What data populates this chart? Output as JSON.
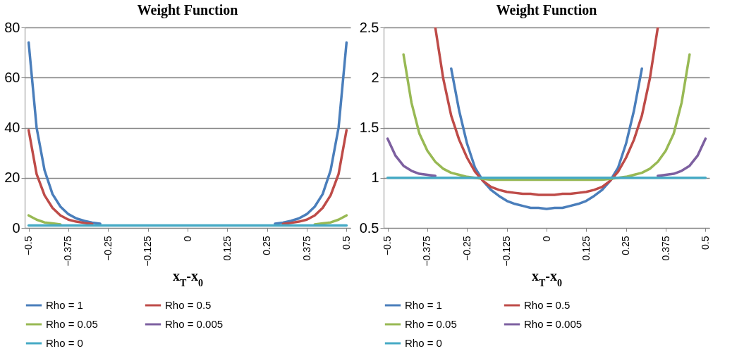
{
  "chart_data": [
    {
      "type": "line",
      "title": "Weight Function",
      "xlabel": "x$_{T}$-x$_{0}$",
      "x": [
        -0.5,
        -0.475,
        -0.45,
        -0.425,
        -0.4,
        -0.375,
        -0.35,
        -0.325,
        -0.3,
        -0.275,
        -0.25,
        -0.225,
        -0.2,
        -0.175,
        -0.15,
        -0.125,
        -0.1,
        -0.075,
        -0.05,
        -0.025,
        0,
        0.025,
        0.05,
        0.075,
        0.1,
        0.125,
        0.15,
        0.175,
        0.2,
        0.225,
        0.25,
        0.275,
        0.3,
        0.325,
        0.35,
        0.375,
        0.4,
        0.425,
        0.45,
        0.475,
        0.5
      ],
      "xlim": [
        -0.5125,
        0.5125
      ],
      "xticks": [
        -0.5,
        -0.375,
        -0.25,
        -0.125,
        0,
        0.125,
        0.25,
        0.375,
        0.5
      ],
      "ylim": [
        0,
        80
      ],
      "yticks": [
        0,
        20,
        40,
        60,
        80
      ],
      "grid": "y",
      "legend": "bottom",
      "marker": "none",
      "line_style": "solid",
      "series": [
        {
          "name": "Rho = 1",
          "color": "#4a7ebb",
          "values": [
            74,
            40,
            23,
            13.5,
            8.5,
            5.5,
            3.8,
            2.8,
            2.1,
            1.7,
            null,
            null,
            null,
            null,
            null,
            null,
            null,
            null,
            null,
            null,
            null,
            null,
            null,
            null,
            null,
            null,
            null,
            null,
            null,
            null,
            null,
            1.7,
            2.1,
            2.8,
            3.8,
            5.5,
            8.5,
            13.5,
            23,
            40,
            74
          ]
        },
        {
          "name": "Rho = 0.5",
          "color": "#be4b48",
          "values": [
            39,
            21.5,
            13,
            8,
            5,
            3.3,
            2.5,
            2,
            1.6,
            null,
            null,
            null,
            null,
            null,
            null,
            null,
            null,
            null,
            null,
            null,
            null,
            null,
            null,
            null,
            null,
            null,
            null,
            null,
            null,
            null,
            null,
            null,
            1.6,
            2,
            2.5,
            3.3,
            5,
            8,
            13,
            21.5,
            39
          ]
        },
        {
          "name": "Rho = 0.05",
          "color": "#98b954",
          "values": [
            5,
            3.3,
            2.2,
            1.8,
            1.4,
            null,
            null,
            null,
            null,
            null,
            null,
            null,
            null,
            null,
            null,
            null,
            null,
            null,
            null,
            null,
            null,
            null,
            null,
            null,
            null,
            null,
            null,
            null,
            null,
            null,
            null,
            null,
            null,
            null,
            null,
            null,
            1.4,
            1.8,
            2.2,
            3.3,
            5
          ]
        },
        {
          "name": "Rho = 0.005",
          "color": "#7d60a0",
          "values": [
            null,
            null,
            null,
            null,
            null,
            null,
            null,
            null,
            null,
            null,
            null,
            null,
            null,
            null,
            null,
            null,
            null,
            null,
            null,
            null,
            null,
            null,
            null,
            null,
            null,
            null,
            null,
            null,
            null,
            null,
            null,
            null,
            null,
            null,
            null,
            null,
            null,
            null,
            null,
            null,
            null
          ]
        },
        {
          "name": "Rho = 0",
          "color": "#46aac5",
          "values": [
            1,
            1,
            1,
            1,
            1,
            1,
            1,
            1,
            1,
            1,
            1,
            1,
            1,
            1,
            1,
            1,
            1,
            1,
            1,
            1,
            1,
            1,
            1,
            1,
            1,
            1,
            1,
            1,
            1,
            1,
            1,
            1,
            1,
            1,
            1,
            1,
            1,
            1,
            1,
            1,
            1
          ]
        }
      ]
    },
    {
      "type": "line",
      "title": "Weight Function",
      "xlabel": "x$_{T}$-x$_{0}$",
      "x": [
        -0.5,
        -0.475,
        -0.45,
        -0.425,
        -0.4,
        -0.375,
        -0.35,
        -0.325,
        -0.3,
        -0.275,
        -0.25,
        -0.225,
        -0.2,
        -0.175,
        -0.15,
        -0.125,
        -0.1,
        -0.075,
        -0.05,
        -0.025,
        0,
        0.025,
        0.05,
        0.075,
        0.1,
        0.125,
        0.15,
        0.175,
        0.2,
        0.225,
        0.25,
        0.275,
        0.3,
        0.325,
        0.35,
        0.375,
        0.4,
        0.425,
        0.45,
        0.475,
        0.5
      ],
      "xlim": [
        -0.5125,
        0.5125
      ],
      "xticks": [
        -0.5,
        -0.375,
        -0.25,
        -0.125,
        0,
        0.125,
        0.25,
        0.375,
        0.5
      ],
      "ylim": [
        0.5,
        2.5
      ],
      "yticks": [
        0.5,
        1,
        1.5,
        2,
        2.5
      ],
      "grid": "y",
      "legend": "bottom",
      "marker": "none",
      "line_style": "solid",
      "series": [
        {
          "name": "Rho = 1",
          "color": "#4a7ebb",
          "values": [
            null,
            null,
            null,
            null,
            null,
            null,
            null,
            null,
            2.09,
            1.67,
            1.34,
            1.1,
            0.97,
            0.88,
            0.82,
            0.77,
            0.74,
            0.72,
            0.7,
            0.7,
            0.69,
            0.7,
            0.7,
            0.72,
            0.74,
            0.77,
            0.82,
            0.88,
            0.97,
            1.1,
            1.34,
            1.67,
            2.09,
            null,
            null,
            null,
            null,
            null,
            null,
            null,
            null
          ]
        },
        {
          "name": "Rho = 0.5",
          "color": "#be4b48",
          "values": [
            null,
            null,
            null,
            null,
            null,
            null,
            2.5,
            1.99,
            1.62,
            1.38,
            1.2,
            1.06,
            0.97,
            0.91,
            0.88,
            0.86,
            0.85,
            0.84,
            0.84,
            0.83,
            0.83,
            0.83,
            0.84,
            0.84,
            0.85,
            0.86,
            0.88,
            0.91,
            0.97,
            1.06,
            1.2,
            1.38,
            1.62,
            1.99,
            2.5,
            null,
            null,
            null,
            null,
            null,
            null
          ]
        },
        {
          "name": "Rho = 0.05",
          "color": "#98b954",
          "values": [
            null,
            null,
            2.23,
            1.75,
            1.44,
            1.27,
            1.16,
            1.09,
            1.05,
            1.03,
            1.01,
            1,
            0.99,
            0.98,
            0.98,
            0.98,
            0.98,
            0.98,
            0.98,
            0.98,
            0.98,
            0.98,
            0.98,
            0.98,
            0.98,
            0.98,
            0.98,
            0.98,
            0.99,
            1,
            1.01,
            1.03,
            1.05,
            1.09,
            1.16,
            1.27,
            1.44,
            1.75,
            2.23,
            null,
            null
          ]
        },
        {
          "name": "Rho = 0.005",
          "color": "#7d60a0",
          "values": [
            1.39,
            1.22,
            1.12,
            1.07,
            1.04,
            1.03,
            1.02,
            null,
            null,
            null,
            null,
            null,
            null,
            null,
            null,
            null,
            null,
            null,
            null,
            null,
            null,
            null,
            null,
            null,
            null,
            null,
            null,
            null,
            null,
            null,
            null,
            null,
            null,
            null,
            1.02,
            1.03,
            1.04,
            1.07,
            1.12,
            1.22,
            1.39
          ]
        },
        {
          "name": "Rho = 0",
          "color": "#46aac5",
          "values": [
            1,
            1,
            1,
            1,
            1,
            1,
            1,
            1,
            1,
            1,
            1,
            1,
            1,
            1,
            1,
            1,
            1,
            1,
            1,
            1,
            1,
            1,
            1,
            1,
            1,
            1,
            1,
            1,
            1,
            1,
            1,
            1,
            1,
            1,
            1,
            1,
            1,
            1,
            1,
            1,
            1
          ]
        }
      ]
    }
  ]
}
